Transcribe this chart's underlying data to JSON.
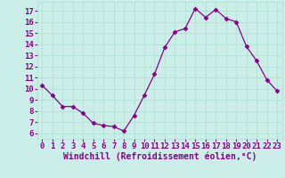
{
  "hours": [
    0,
    1,
    2,
    3,
    4,
    5,
    6,
    7,
    8,
    9,
    10,
    11,
    12,
    13,
    14,
    15,
    16,
    17,
    18,
    19,
    20,
    21,
    22,
    23
  ],
  "values": [
    10.3,
    9.4,
    8.4,
    8.4,
    7.8,
    6.9,
    6.7,
    6.6,
    6.2,
    7.6,
    9.4,
    11.3,
    13.7,
    15.1,
    15.4,
    17.2,
    16.4,
    17.1,
    16.3,
    16.0,
    13.8,
    12.5,
    10.8,
    9.8
  ],
  "line_color": "#880088",
  "marker": "D",
  "marker_size": 2.5,
  "bg_color": "#cceee8",
  "grid_color": "#aaddcc",
  "ylabel_ticks": [
    6,
    7,
    8,
    9,
    10,
    11,
    12,
    13,
    14,
    15,
    16,
    17
  ],
  "ylim": [
    5.5,
    17.8
  ],
  "xlim": [
    -0.5,
    23.5
  ],
  "text_color": "#880088",
  "xlabel": "Windchill (Refroidissement éolien,°C)",
  "tick_fontsize": 6.5,
  "xlabel_fontsize": 7.0
}
